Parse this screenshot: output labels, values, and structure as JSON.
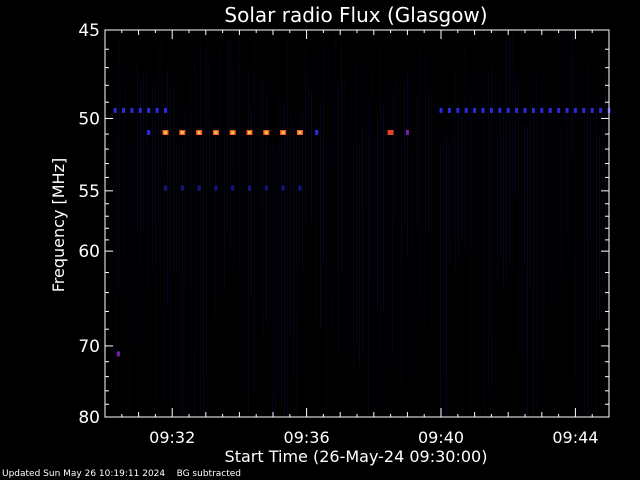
{
  "chart_data": {
    "type": "heatmap",
    "title": "Solar radio Flux (Glasgow)",
    "xlabel": "Start Time (26-May-24 09:30:00)",
    "ylabel": "Frequency [MHz]",
    "x_unit": "minutes after 09:30:00",
    "xlim": [
      0,
      15
    ],
    "ylim": [
      45,
      80
    ],
    "x_ticks": [
      {
        "value": 2,
        "label": "09:32"
      },
      {
        "value": 6,
        "label": "09:36"
      },
      {
        "value": 10,
        "label": "09:40"
      },
      {
        "value": 14,
        "label": "09:44"
      }
    ],
    "y_ticks": [
      {
        "value": 45,
        "label": "45"
      },
      {
        "value": 50,
        "label": "50"
      },
      {
        "value": 55,
        "label": "55"
      },
      {
        "value": 60,
        "label": "60"
      },
      {
        "value": 70,
        "label": "70"
      },
      {
        "value": 80,
        "label": "80"
      }
    ],
    "y_scale": "reciprocal",
    "colors": {
      "background": "#000000",
      "axes": "#ffffff"
    },
    "bands": [
      {
        "freq": 49.5,
        "t_start": 0.3,
        "t_end": 2.0,
        "step": 0.25,
        "intensity": 0.28
      },
      {
        "freq": 49.5,
        "t_start": 10.0,
        "t_end": 15.0,
        "step": 0.25,
        "intensity": 0.28
      },
      {
        "freq": 50.9,
        "t_start": 1.3,
        "t_end": 1.4,
        "step": 0.5,
        "intensity": 0.35
      },
      {
        "freq": 50.9,
        "t_start": 1.8,
        "t_end": 5.8,
        "step": 0.5,
        "intensity": 0.95
      },
      {
        "freq": 50.9,
        "t_start": 6.3,
        "t_end": 6.3,
        "step": 0.5,
        "intensity": 0.35
      },
      {
        "freq": 50.9,
        "t_start": 8.5,
        "t_end": 8.5,
        "step": 0.5,
        "intensity": 0.8
      },
      {
        "freq": 50.9,
        "t_start": 9.0,
        "t_end": 9.0,
        "step": 0.5,
        "intensity": 0.45
      },
      {
        "freq": 54.8,
        "t_start": 1.8,
        "t_end": 5.8,
        "step": 0.5,
        "intensity": 0.15
      },
      {
        "freq": 71.0,
        "t_start": 0.4,
        "t_end": 0.4,
        "step": 0.5,
        "intensity": 0.5
      }
    ]
  },
  "footer": {
    "updated": "Updated Sun May 26 10:19:11 2024",
    "note": "BG subtracted"
  }
}
